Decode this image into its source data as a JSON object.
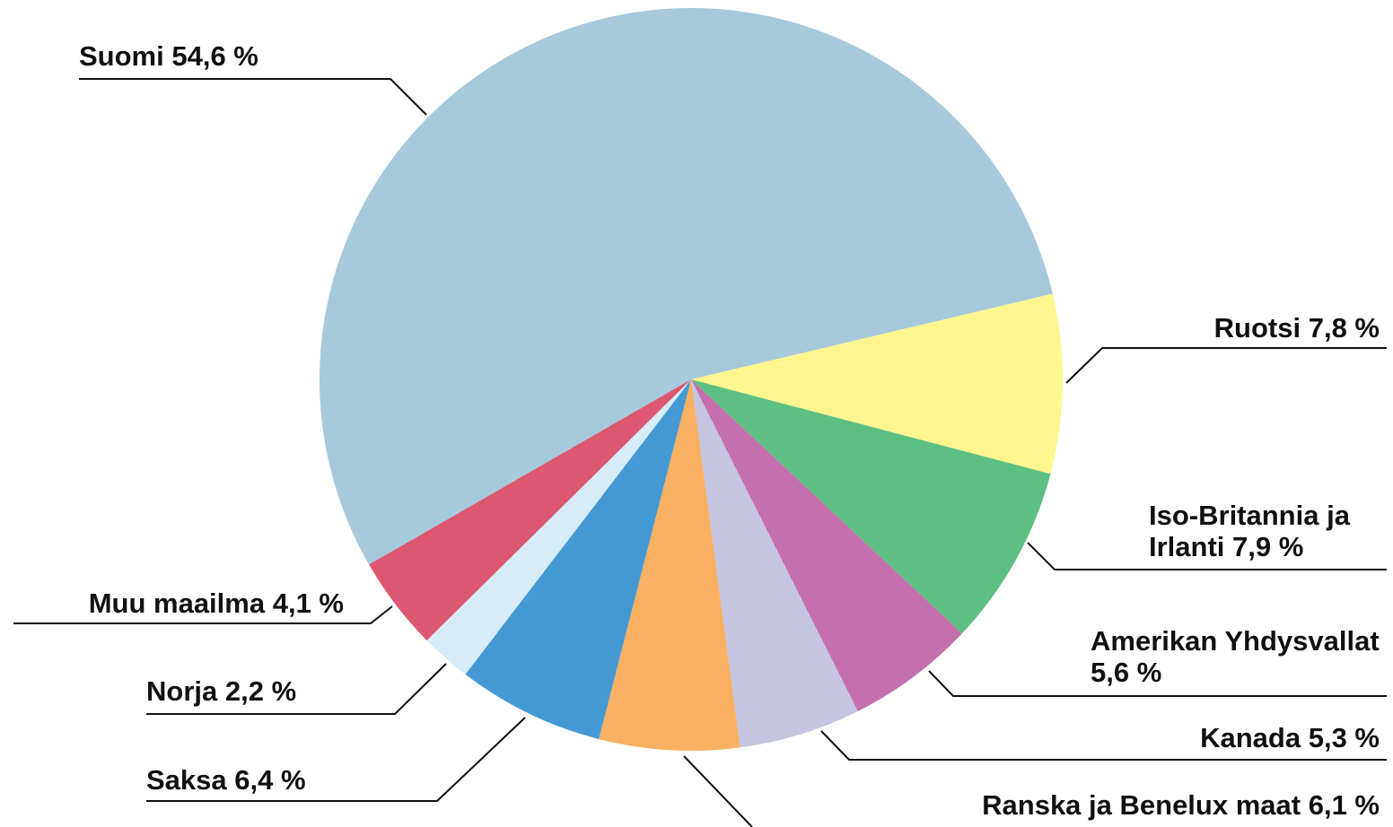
{
  "chart_data": {
    "type": "pie",
    "categories": [
      "Suomi",
      "Ruotsi",
      "Iso-Britannia ja Irlanti",
      "Amerikan Yhdysvallat",
      "Kanada",
      "Ranska ja Benelux maat",
      "Saksa",
      "Norja",
      "Muu maailma"
    ],
    "values": [
      54.6,
      7.8,
      7.9,
      5.6,
      5.3,
      6.1,
      6.4,
      2.2,
      4.1
    ],
    "value_labels": [
      "54,6 %",
      "7,8 %",
      "7,9 %",
      "5,6 %",
      "5,3 %",
      "6,1 %",
      "6,4 %",
      "2,2 %",
      "4,1 %"
    ],
    "colors": [
      "#a6c9dc",
      "#fff68f",
      "#5ebf82",
      "#c46fae",
      "#c5c4e1",
      "#f9b062",
      "#4599d3",
      "#d6ecf8",
      "#dc5871"
    ]
  }
}
